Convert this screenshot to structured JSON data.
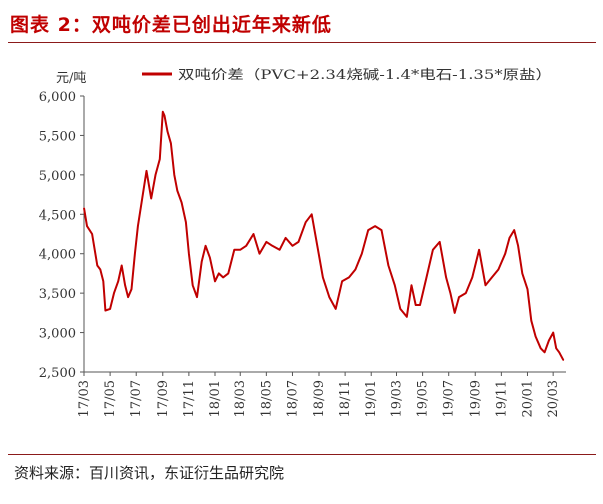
{
  "header": {
    "title": "图表 2：双吨价差已创出近年来新低"
  },
  "footer": {
    "source": "资料来源：百川资讯，东证衍生品研究院"
  },
  "chart_data": {
    "type": "line",
    "unit_label": "元/吨",
    "ylim": [
      2500,
      6000
    ],
    "y_ticks": [
      "2,500",
      "3,000",
      "3,500",
      "4,000",
      "4,500",
      "5,000",
      "5,500",
      "6,000"
    ],
    "x_ticks": [
      "17/03",
      "17/05",
      "17/07",
      "17/09",
      "17/11",
      "18/01",
      "18/03",
      "18/05",
      "18/07",
      "18/09",
      "18/11",
      "19/01",
      "19/03",
      "19/05",
      "19/07",
      "19/09",
      "19/11",
      "20/01",
      "20/03"
    ],
    "legend": "双吨价差（PVC+2.34烧碱-1.4*电石-1.35*原盐）",
    "color": "#c00000",
    "series": [
      {
        "name": "双吨价差（PVC+2.34烧碱-1.4*电石-1.35*原盐）",
        "x": [
          "2017-03-01",
          "2017-03-08",
          "2017-03-20",
          "2017-04-01",
          "2017-04-08",
          "2017-04-15",
          "2017-04-20",
          "2017-05-01",
          "2017-05-10",
          "2017-05-20",
          "2017-05-28",
          "2017-06-05",
          "2017-06-12",
          "2017-06-20",
          "2017-06-28",
          "2017-07-05",
          "2017-07-15",
          "2017-07-25",
          "2017-08-05",
          "2017-08-15",
          "2017-08-25",
          "2017-09-01",
          "2017-09-05",
          "2017-09-12",
          "2017-09-20",
          "2017-09-28",
          "2017-10-05",
          "2017-10-15",
          "2017-10-25",
          "2017-11-01",
          "2017-11-10",
          "2017-11-20",
          "2017-12-01",
          "2017-12-10",
          "2017-12-20",
          "2018-01-01",
          "2018-01-10",
          "2018-01-20",
          "2018-02-01",
          "2018-02-15",
          "2018-03-01",
          "2018-03-15",
          "2018-04-01",
          "2018-04-15",
          "2018-05-01",
          "2018-05-15",
          "2018-06-01",
          "2018-06-15",
          "2018-07-01",
          "2018-07-15",
          "2018-08-01",
          "2018-08-15",
          "2018-08-28",
          "2018-09-10",
          "2018-09-25",
          "2018-10-10",
          "2018-10-25",
          "2018-11-10",
          "2018-11-25",
          "2018-12-10",
          "2018-12-25",
          "2019-01-10",
          "2019-01-25",
          "2019-02-10",
          "2019-02-25",
          "2019-03-10",
          "2019-03-25",
          "2019-04-05",
          "2019-04-15",
          "2019-04-25",
          "2019-05-10",
          "2019-05-25",
          "2019-06-10",
          "2019-06-25",
          "2019-07-05",
          "2019-07-15",
          "2019-07-25",
          "2019-08-10",
          "2019-08-25",
          "2019-09-10",
          "2019-09-25",
          "2019-10-10",
          "2019-10-25",
          "2019-11-10",
          "2019-11-20",
          "2019-12-01",
          "2019-12-10",
          "2019-12-20",
          "2020-01-01",
          "2020-01-10",
          "2020-01-20",
          "2020-02-01",
          "2020-02-10",
          "2020-02-20",
          "2020-03-01",
          "2020-03-08",
          "2020-03-15",
          "2020-03-25"
        ],
        "values": [
          4580,
          4350,
          4250,
          3850,
          3800,
          3650,
          3280,
          3300,
          3500,
          3650,
          3850,
          3600,
          3450,
          3550,
          4000,
          4350,
          4700,
          5050,
          4700,
          5000,
          5200,
          5800,
          5750,
          5550,
          5400,
          5000,
          4800,
          4650,
          4400,
          4000,
          3600,
          3450,
          3900,
          4100,
          3950,
          3650,
          3750,
          3700,
          3750,
          4050,
          4050,
          4100,
          4250,
          4000,
          4150,
          4100,
          4050,
          4200,
          4100,
          4150,
          4400,
          4500,
          4100,
          3700,
          3450,
          3300,
          3650,
          3700,
          3800,
          4000,
          4300,
          4350,
          4300,
          3850,
          3600,
          3300,
          3200,
          3600,
          3350,
          3350,
          3700,
          4050,
          4150,
          3700,
          3500,
          3250,
          3450,
          3500,
          3700,
          4050,
          3600,
          3700,
          3800,
          4000,
          4200,
          4300,
          4100,
          3750,
          3550,
          3150,
          2950,
          2800,
          2750,
          2900,
          3000,
          2800,
          2750,
          2650
        ]
      }
    ]
  }
}
